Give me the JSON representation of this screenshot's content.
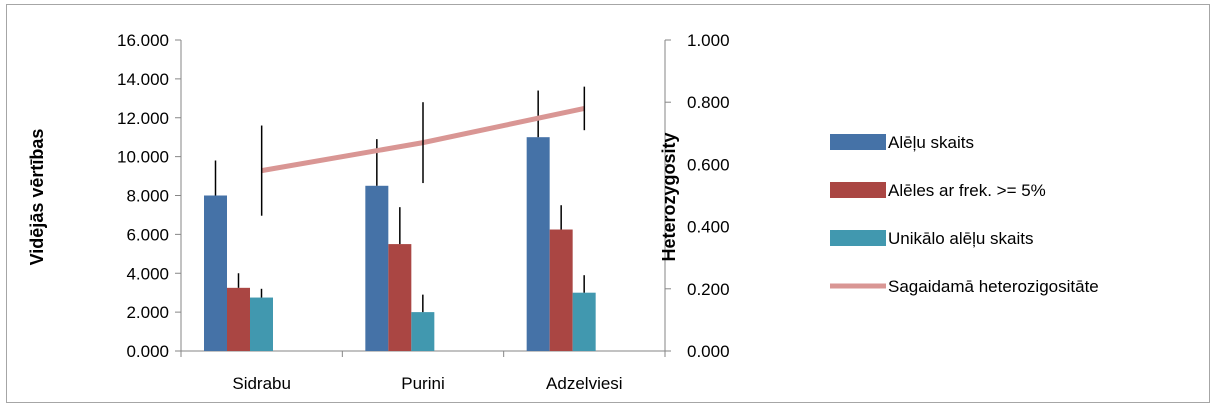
{
  "chart_data": {
    "type": "bar",
    "categories": [
      "Sidrabu",
      "Purini",
      "Adzelviesi"
    ],
    "series": [
      {
        "name": "Alēļu skaits",
        "axis": "left",
        "kind": "bar",
        "color": "#4572a7",
        "values": [
          8.0,
          8.5,
          11.0
        ],
        "err": [
          1.8,
          2.4,
          2.4
        ]
      },
      {
        "name": "Alēles ar frek. >= 5%",
        "axis": "left",
        "kind": "bar",
        "color": "#aa4643",
        "values": [
          3.25,
          5.5,
          6.25
        ],
        "err": [
          0.75,
          1.9,
          1.25
        ]
      },
      {
        "name": "Unikālo alēļu skaits",
        "axis": "left",
        "kind": "bar",
        "color": "#4198af",
        "values": [
          2.75,
          2.0,
          3.0
        ],
        "err": [
          0.45,
          0.9,
          0.9
        ]
      },
      {
        "name": "Sagaidamā heterozigositāte",
        "axis": "right",
        "kind": "line",
        "color": "#d99694",
        "values": [
          0.58,
          0.67,
          0.78
        ],
        "err": [
          0.145,
          0.13,
          0.07
        ]
      }
    ],
    "ylabel": "Vidējās vērtības",
    "y2label": "Heterozygosity",
    "ylim": [
      0,
      16
    ],
    "y2lim": [
      0,
      1
    ],
    "yticks": [
      "0.000",
      "2.000",
      "4.000",
      "6.000",
      "8.000",
      "10.000",
      "12.000",
      "14.000",
      "16.000"
    ],
    "y2ticks": [
      "0.000",
      "0.200",
      "0.400",
      "0.600",
      "0.800",
      "1.000"
    ],
    "grid": false,
    "legend": "right"
  }
}
